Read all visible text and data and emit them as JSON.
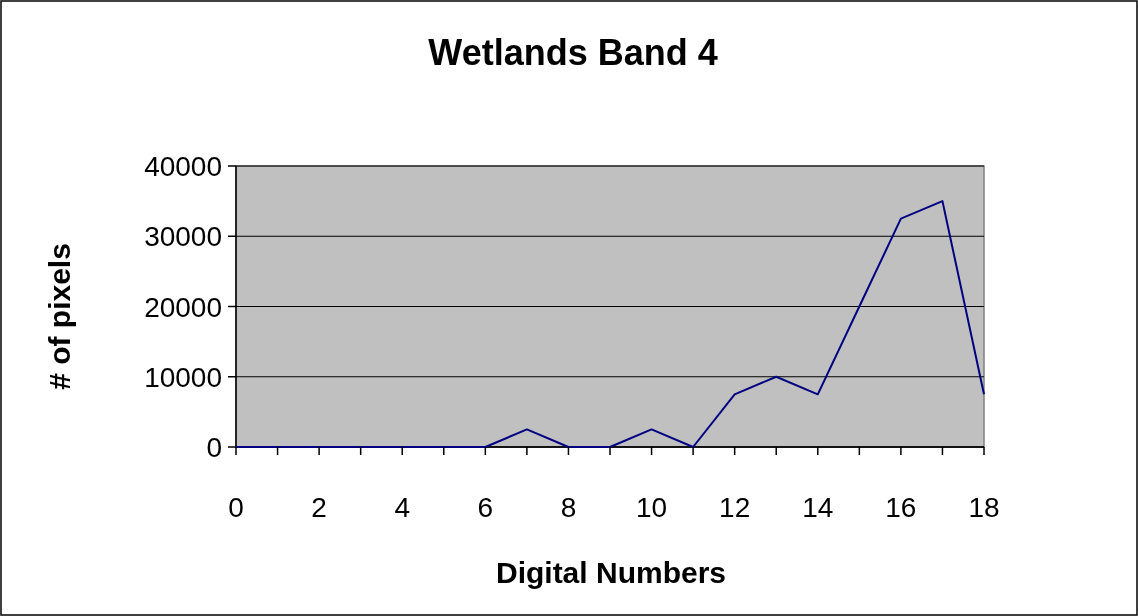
{
  "chart_data": {
    "type": "line",
    "title": "Wetlands Band 4",
    "xlabel": "Digital Numbers",
    "ylabel": "# of pixels",
    "x": [
      0,
      1,
      2,
      3,
      4,
      5,
      6,
      7,
      8,
      9,
      10,
      11,
      12,
      13,
      14,
      15,
      16,
      17,
      18
    ],
    "series": [
      {
        "color": "#000080",
        "values": [
          0,
          0,
          0,
          0,
          0,
          0,
          0,
          2500,
          0,
          0,
          2500,
          0,
          7500,
          10000,
          7500,
          20000,
          32500,
          35000,
          7500
        ]
      }
    ],
    "xlim": [
      0,
      18
    ],
    "xticks": [
      0,
      {
        "value": 1,
        "label": null
      },
      2,
      {
        "value": 3,
        "label": null
      },
      4,
      {
        "value": 5,
        "label": null
      },
      6,
      {
        "value": 7,
        "label": null
      },
      8,
      {
        "value": 9,
        "label": null
      },
      10,
      {
        "value": 11,
        "label": null
      },
      12,
      {
        "value": 13,
        "label": null
      },
      14,
      {
        "value": 15,
        "label": null
      },
      16,
      {
        "value": 17,
        "label": null
      },
      18
    ],
    "ylim": [
      0,
      40000
    ],
    "yticks": [
      0,
      10000,
      20000,
      30000,
      40000
    ],
    "grid": "y",
    "marker": "none",
    "line_style": "solid"
  }
}
